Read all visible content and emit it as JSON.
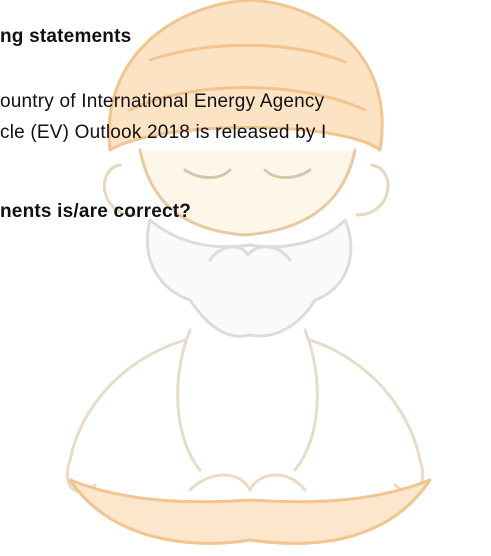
{
  "document": {
    "heading": "ng statements",
    "statements": [
      "ountry of International Energy Agency",
      "cle (EV) Outlook 2018 is released by I"
    ],
    "question": "nents is/are correct?"
  }
}
